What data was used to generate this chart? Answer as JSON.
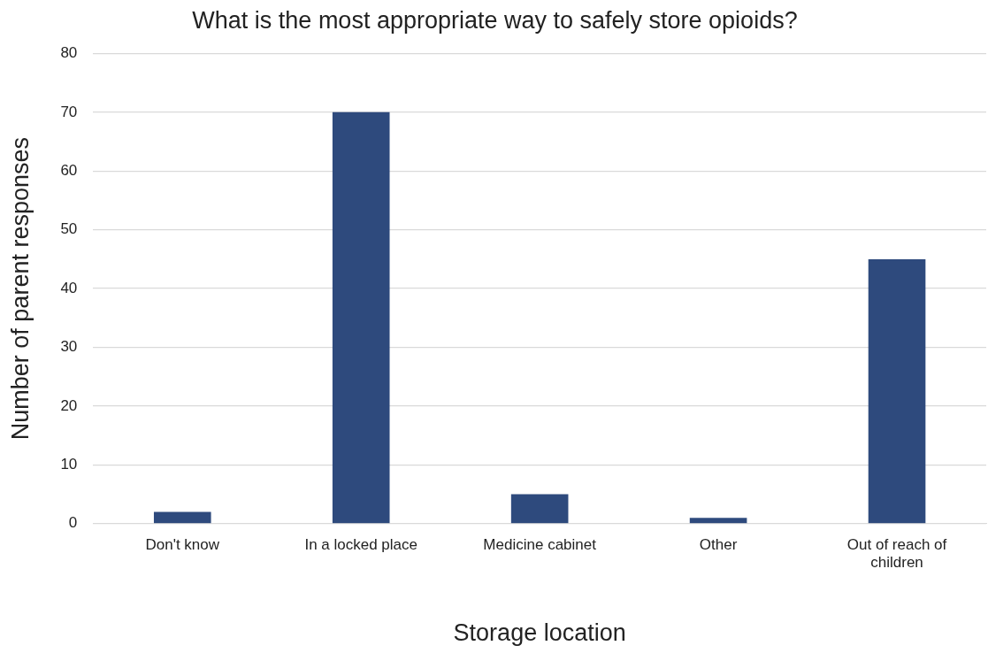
{
  "chart_data": {
    "type": "bar",
    "title": "What is the most appropriate way to safely store opioids?",
    "xlabel": "Storage location",
    "ylabel": "Number of parent responses",
    "categories": [
      "Don't know",
      "In a locked place",
      "Medicine cabinet",
      "Other",
      "Out of reach of children"
    ],
    "values": [
      2,
      70,
      5,
      1,
      45
    ],
    "color": "#2e4a7d",
    "ylim": [
      0,
      80
    ],
    "yticks": [
      0,
      10,
      20,
      30,
      40,
      50,
      60,
      70,
      80
    ],
    "grid": "y",
    "legend": false
  }
}
